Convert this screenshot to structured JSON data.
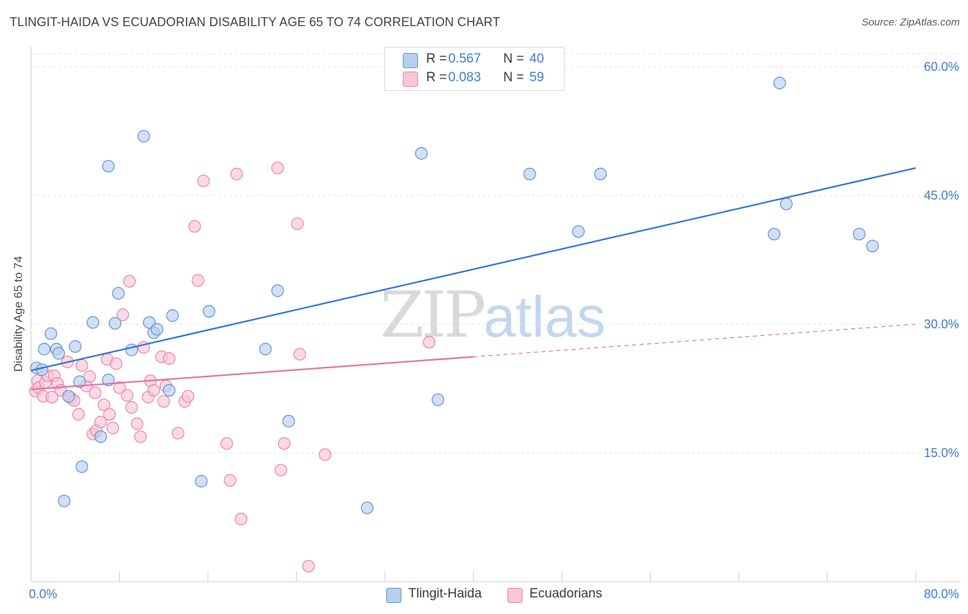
{
  "header": {
    "title": "TLINGIT-HAIDA VS ECUADORIAN DISABILITY AGE 65 TO 74 CORRELATION CHART",
    "source": "Source: ZipAtlas.com"
  },
  "watermark": {
    "zip": "ZIP",
    "atlas": "atlas"
  },
  "legend": {
    "r_label": "R =",
    "n_label": "N =",
    "rows": [
      {
        "r": "0.567",
        "n": "40"
      },
      {
        "r": "0.083",
        "n": "59"
      }
    ]
  },
  "bottom_legend": [
    "Tlingit-Haida",
    "Ecuadorians"
  ],
  "chart_data": {
    "type": "scatter",
    "title": "TLINGIT-HAIDA VS ECUADORIAN DISABILITY AGE 65 TO 74 CORRELATION CHART",
    "xlabel": "",
    "ylabel": "Disability Age 65 to 74",
    "xlim": [
      0,
      80
    ],
    "ylim": [
      0,
      62
    ],
    "x_tick_labels": [
      "0.0%",
      "80.0%"
    ],
    "y_ticks": [
      15,
      30,
      45,
      60
    ],
    "y_tick_labels": [
      "15.0%",
      "30.0%",
      "45.0%",
      "60.0%"
    ],
    "grid": true,
    "colors": {
      "tlingit_fill": "#b8d0f0",
      "tlingit_stroke": "#5a8fd0",
      "tlingit_line": "#2a6fd0",
      "ecuador_fill": "#f8c6d6",
      "ecuador_stroke": "#e882a6",
      "ecuador_line": "#e0709a",
      "axis_label": "#3a78c9",
      "grid": "#e0e0e0"
    },
    "series": [
      {
        "name": "Tlingit-Haida",
        "R": 0.567,
        "N": 40,
        "trend": {
          "x": [
            0,
            80
          ],
          "y": [
            24.6,
            48.2
          ],
          "dashed_from": null
        },
        "points": [
          [
            0.5,
            24.9
          ],
          [
            1.0,
            24.7
          ],
          [
            1.2,
            27.1
          ],
          [
            1.8,
            28.9
          ],
          [
            2.3,
            27.1
          ],
          [
            2.5,
            26.6
          ],
          [
            3.0,
            9.4
          ],
          [
            3.4,
            21.6
          ],
          [
            4.0,
            27.4
          ],
          [
            4.4,
            23.3
          ],
          [
            4.6,
            13.4
          ],
          [
            5.6,
            30.2
          ],
          [
            6.3,
            16.9
          ],
          [
            7.0,
            23.5
          ],
          [
            7.0,
            48.4
          ],
          [
            7.6,
            30.1
          ],
          [
            7.9,
            33.6
          ],
          [
            9.1,
            27.0
          ],
          [
            10.2,
            51.9
          ],
          [
            10.7,
            30.2
          ],
          [
            11.1,
            29.0
          ],
          [
            11.4,
            29.4
          ],
          [
            12.5,
            22.3
          ],
          [
            12.8,
            31.0
          ],
          [
            15.4,
            11.7
          ],
          [
            16.1,
            31.5
          ],
          [
            21.2,
            27.1
          ],
          [
            22.3,
            33.9
          ],
          [
            23.3,
            18.7
          ],
          [
            30.4,
            8.6
          ],
          [
            35.3,
            49.9
          ],
          [
            36.8,
            21.2
          ],
          [
            45.1,
            47.5
          ],
          [
            49.5,
            40.8
          ],
          [
            51.5,
            47.5
          ],
          [
            67.7,
            58.1
          ],
          [
            68.3,
            44.0
          ],
          [
            67.2,
            40.5
          ],
          [
            74.9,
            40.5
          ],
          [
            76.1,
            39.1
          ]
        ]
      },
      {
        "name": "Ecuadorians",
        "R": 0.083,
        "N": 59,
        "trend": {
          "x": [
            0,
            80
          ],
          "y": [
            22.4,
            30.0
          ],
          "dashed_from": 40
        },
        "points": [
          [
            0.4,
            22.2
          ],
          [
            0.6,
            23.4
          ],
          [
            0.7,
            22.6
          ],
          [
            1.1,
            21.6
          ],
          [
            1.3,
            23.2
          ],
          [
            1.5,
            24.0
          ],
          [
            1.9,
            21.5
          ],
          [
            2.1,
            24.0
          ],
          [
            2.4,
            23.1
          ],
          [
            2.7,
            22.3
          ],
          [
            3.3,
            25.6
          ],
          [
            3.6,
            21.4
          ],
          [
            3.9,
            21.1
          ],
          [
            4.3,
            19.5
          ],
          [
            4.6,
            25.2
          ],
          [
            5.0,
            22.8
          ],
          [
            5.3,
            23.9
          ],
          [
            5.6,
            17.2
          ],
          [
            5.8,
            22.0
          ],
          [
            5.9,
            17.6
          ],
          [
            6.3,
            18.6
          ],
          [
            6.6,
            20.6
          ],
          [
            6.9,
            25.9
          ],
          [
            7.1,
            19.5
          ],
          [
            7.4,
            17.9
          ],
          [
            7.7,
            25.4
          ],
          [
            8.0,
            22.6
          ],
          [
            8.3,
            31.1
          ],
          [
            8.7,
            21.7
          ],
          [
            8.9,
            35.0
          ],
          [
            9.1,
            20.3
          ],
          [
            9.6,
            18.4
          ],
          [
            9.9,
            16.9
          ],
          [
            10.2,
            27.3
          ],
          [
            10.6,
            21.5
          ],
          [
            10.8,
            23.4
          ],
          [
            11.1,
            22.3
          ],
          [
            11.8,
            26.2
          ],
          [
            12.0,
            21.0
          ],
          [
            12.2,
            22.8
          ],
          [
            12.5,
            26.0
          ],
          [
            13.3,
            17.3
          ],
          [
            13.9,
            21.0
          ],
          [
            14.2,
            21.6
          ],
          [
            14.8,
            41.4
          ],
          [
            15.1,
            35.1
          ],
          [
            15.6,
            46.7
          ],
          [
            17.7,
            16.1
          ],
          [
            18.0,
            11.8
          ],
          [
            18.6,
            47.5
          ],
          [
            19.0,
            7.3
          ],
          [
            22.3,
            48.2
          ],
          [
            22.6,
            13.0
          ],
          [
            22.9,
            16.1
          ],
          [
            24.1,
            41.7
          ],
          [
            24.3,
            26.5
          ],
          [
            25.1,
            1.8
          ],
          [
            26.6,
            14.8
          ],
          [
            36.0,
            27.9
          ]
        ]
      }
    ]
  }
}
